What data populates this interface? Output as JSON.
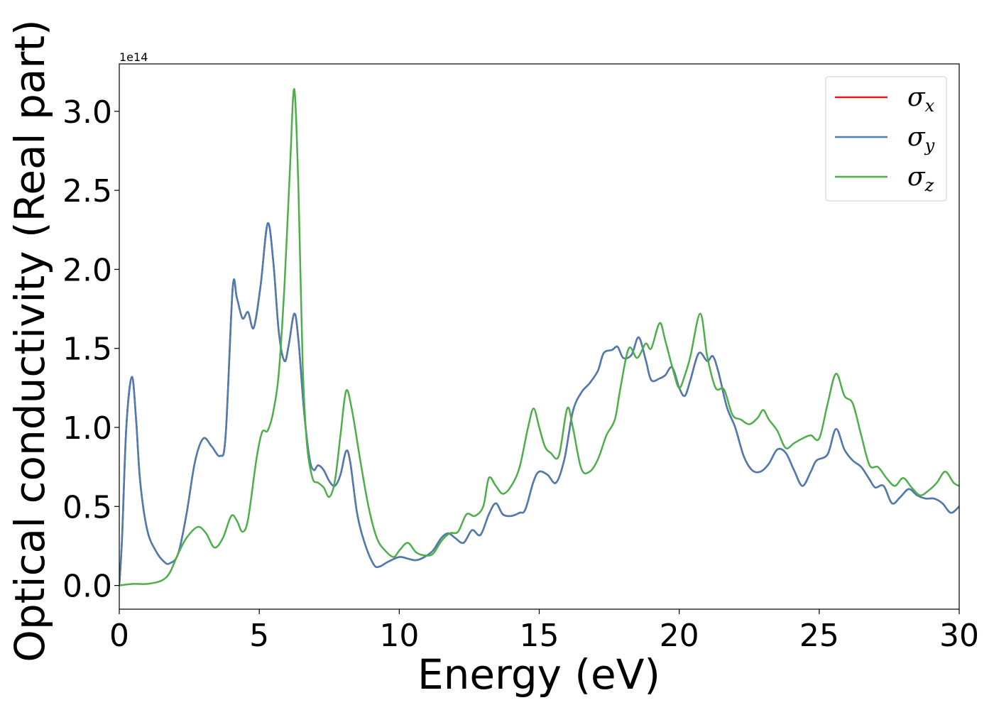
{
  "chart_data": {
    "type": "line",
    "xlabel": "Energy (eV)",
    "ylabel": "Optical conductivity (Real part)",
    "y_offset_label": "1e14",
    "xlim": [
      0,
      30
    ],
    "ylim": [
      -0.15,
      3.3
    ],
    "xticks": [
      0,
      5,
      10,
      15,
      20,
      25,
      30
    ],
    "xtick_labels": [
      "0",
      "5",
      "10",
      "15",
      "20",
      "25",
      "30"
    ],
    "yticks": [
      0.0,
      0.5,
      1.0,
      1.5,
      2.0,
      2.5,
      3.0
    ],
    "ytick_labels": [
      "0.0",
      "0.5",
      "1.0",
      "1.5",
      "2.0",
      "2.5",
      "3.0"
    ],
    "grid": false,
    "legend_position": "top-right",
    "series": [
      {
        "name": "σx",
        "symbol": "σ",
        "subscript": "x",
        "color": "#e41a1c",
        "x": [
          0,
          0.1,
          0.25,
          0.45,
          0.6,
          0.75,
          1.0,
          1.3,
          1.6,
          1.8,
          2.1,
          2.4,
          2.7,
          3.0,
          3.3,
          3.6,
          3.8,
          4.05,
          4.2,
          4.4,
          4.6,
          4.8,
          5.05,
          5.3,
          5.5,
          5.7,
          5.9,
          6.05,
          6.25,
          6.4,
          6.6,
          6.8,
          6.95,
          7.1,
          7.3,
          7.5,
          7.7,
          7.9,
          8.1,
          8.25,
          8.5,
          8.8,
          9.1,
          9.3,
          9.6,
          10.0,
          10.3,
          10.6,
          10.9,
          11.2,
          11.5,
          11.75,
          12.0,
          12.3,
          12.6,
          12.9,
          13.2,
          13.45,
          13.7,
          14.0,
          14.3,
          14.5,
          14.8,
          15.0,
          15.3,
          15.6,
          15.9,
          16.2,
          16.5,
          16.8,
          17.1,
          17.3,
          17.6,
          17.8,
          18.0,
          18.3,
          18.55,
          18.8,
          19.0,
          19.3,
          19.5,
          19.75,
          20.0,
          20.2,
          20.4,
          20.7,
          21.0,
          21.2,
          21.4,
          21.7,
          22.0,
          22.3,
          22.6,
          22.9,
          23.2,
          23.5,
          23.8,
          24.1,
          24.4,
          24.7,
          24.9,
          25.3,
          25.6,
          25.9,
          26.2,
          26.5,
          26.8,
          27.0,
          27.3,
          27.6,
          27.9,
          28.2,
          28.5,
          28.8,
          29.1,
          29.4,
          29.7,
          30.0
        ],
        "y": [
          0.0,
          0.3,
          1.0,
          1.32,
          1.05,
          0.65,
          0.35,
          0.22,
          0.15,
          0.14,
          0.2,
          0.45,
          0.78,
          0.93,
          0.88,
          0.82,
          0.95,
          1.88,
          1.82,
          1.69,
          1.73,
          1.63,
          1.9,
          2.29,
          2.05,
          1.6,
          1.42,
          1.52,
          1.72,
          1.55,
          1.1,
          0.8,
          0.73,
          0.76,
          0.73,
          0.66,
          0.63,
          0.7,
          0.85,
          0.78,
          0.45,
          0.25,
          0.13,
          0.12,
          0.15,
          0.18,
          0.17,
          0.16,
          0.18,
          0.22,
          0.3,
          0.33,
          0.3,
          0.27,
          0.35,
          0.32,
          0.45,
          0.52,
          0.45,
          0.44,
          0.46,
          0.48,
          0.66,
          0.72,
          0.7,
          0.65,
          0.8,
          1.1,
          1.22,
          1.28,
          1.36,
          1.47,
          1.49,
          1.51,
          1.44,
          1.46,
          1.57,
          1.43,
          1.3,
          1.31,
          1.33,
          1.38,
          1.25,
          1.2,
          1.3,
          1.47,
          1.42,
          1.45,
          1.35,
          1.13,
          1.0,
          0.82,
          0.73,
          0.72,
          0.77,
          0.86,
          0.84,
          0.73,
          0.63,
          0.72,
          0.79,
          0.83,
          0.99,
          0.86,
          0.79,
          0.75,
          0.67,
          0.62,
          0.63,
          0.52,
          0.56,
          0.61,
          0.57,
          0.55,
          0.55,
          0.52,
          0.46,
          0.5
        ]
      },
      {
        "name": "σy",
        "symbol": "σ",
        "subscript": "y",
        "color": "#4a7db3",
        "x": [
          0,
          0.1,
          0.25,
          0.45,
          0.6,
          0.75,
          1.0,
          1.3,
          1.6,
          1.8,
          2.1,
          2.4,
          2.7,
          3.0,
          3.3,
          3.6,
          3.8,
          4.05,
          4.2,
          4.4,
          4.6,
          4.8,
          5.05,
          5.3,
          5.5,
          5.7,
          5.9,
          6.05,
          6.25,
          6.4,
          6.6,
          6.8,
          6.95,
          7.1,
          7.3,
          7.5,
          7.7,
          7.9,
          8.1,
          8.25,
          8.5,
          8.8,
          9.1,
          9.3,
          9.6,
          10.0,
          10.3,
          10.6,
          10.9,
          11.2,
          11.5,
          11.75,
          12.0,
          12.3,
          12.6,
          12.9,
          13.2,
          13.45,
          13.7,
          14.0,
          14.3,
          14.5,
          14.8,
          15.0,
          15.3,
          15.6,
          15.9,
          16.2,
          16.5,
          16.8,
          17.1,
          17.3,
          17.6,
          17.8,
          18.0,
          18.3,
          18.55,
          18.8,
          19.0,
          19.3,
          19.5,
          19.75,
          20.0,
          20.2,
          20.4,
          20.7,
          21.0,
          21.2,
          21.4,
          21.7,
          22.0,
          22.3,
          22.6,
          22.9,
          23.2,
          23.5,
          23.8,
          24.1,
          24.4,
          24.7,
          24.9,
          25.3,
          25.6,
          25.9,
          26.2,
          26.5,
          26.8,
          27.0,
          27.3,
          27.6,
          27.9,
          28.2,
          28.5,
          28.8,
          29.1,
          29.4,
          29.7,
          30.0
        ],
        "y": [
          0.0,
          0.3,
          1.0,
          1.32,
          1.05,
          0.65,
          0.35,
          0.22,
          0.15,
          0.14,
          0.2,
          0.45,
          0.78,
          0.93,
          0.88,
          0.82,
          0.95,
          1.88,
          1.82,
          1.69,
          1.73,
          1.63,
          1.9,
          2.29,
          2.05,
          1.6,
          1.42,
          1.52,
          1.72,
          1.55,
          1.1,
          0.8,
          0.73,
          0.76,
          0.73,
          0.66,
          0.63,
          0.7,
          0.85,
          0.78,
          0.45,
          0.25,
          0.13,
          0.12,
          0.15,
          0.18,
          0.17,
          0.16,
          0.18,
          0.22,
          0.3,
          0.33,
          0.3,
          0.27,
          0.35,
          0.32,
          0.45,
          0.52,
          0.45,
          0.44,
          0.46,
          0.48,
          0.66,
          0.72,
          0.7,
          0.65,
          0.8,
          1.1,
          1.22,
          1.28,
          1.36,
          1.47,
          1.49,
          1.51,
          1.44,
          1.46,
          1.57,
          1.43,
          1.3,
          1.31,
          1.33,
          1.38,
          1.25,
          1.2,
          1.3,
          1.47,
          1.42,
          1.45,
          1.35,
          1.13,
          1.0,
          0.82,
          0.73,
          0.72,
          0.77,
          0.86,
          0.84,
          0.73,
          0.63,
          0.72,
          0.79,
          0.83,
          0.99,
          0.86,
          0.79,
          0.75,
          0.67,
          0.62,
          0.63,
          0.52,
          0.56,
          0.61,
          0.57,
          0.55,
          0.55,
          0.52,
          0.46,
          0.5
        ]
      },
      {
        "name": "σz",
        "symbol": "σ",
        "subscript": "z",
        "color": "#4daf4a",
        "x": [
          0,
          0.5,
          1.0,
          1.5,
          1.8,
          2.1,
          2.4,
          2.8,
          3.1,
          3.4,
          3.7,
          4.0,
          4.2,
          4.4,
          4.6,
          4.9,
          5.1,
          5.3,
          5.5,
          5.7,
          5.9,
          6.1,
          6.25,
          6.4,
          6.55,
          6.7,
          6.9,
          7.1,
          7.3,
          7.5,
          7.7,
          7.9,
          8.1,
          8.3,
          8.6,
          8.9,
          9.2,
          9.5,
          9.8,
          10.0,
          10.3,
          10.6,
          10.9,
          11.2,
          11.5,
          11.8,
          12.1,
          12.4,
          12.7,
          13.0,
          13.2,
          13.45,
          13.7,
          14.0,
          14.3,
          14.6,
          14.8,
          15.0,
          15.2,
          15.4,
          15.7,
          16.0,
          16.2,
          16.5,
          16.8,
          17.1,
          17.4,
          17.7,
          17.9,
          18.2,
          18.5,
          18.8,
          19.0,
          19.3,
          19.5,
          19.8,
          20.0,
          20.2,
          20.4,
          20.75,
          21.0,
          21.3,
          21.6,
          21.9,
          22.2,
          22.5,
          22.8,
          23.0,
          23.2,
          23.5,
          23.8,
          24.1,
          24.4,
          24.7,
          25.0,
          25.3,
          25.6,
          25.9,
          26.2,
          26.5,
          26.8,
          27.1,
          27.4,
          27.7,
          28.0,
          28.3,
          28.6,
          28.9,
          29.2,
          29.5,
          29.8,
          30.0
        ],
        "y": [
          0.0,
          0.01,
          0.01,
          0.03,
          0.08,
          0.2,
          0.3,
          0.37,
          0.33,
          0.24,
          0.3,
          0.44,
          0.41,
          0.34,
          0.42,
          0.8,
          0.97,
          0.98,
          1.1,
          1.35,
          1.9,
          2.65,
          3.14,
          2.5,
          1.4,
          0.9,
          0.68,
          0.65,
          0.62,
          0.56,
          0.66,
          0.95,
          1.23,
          1.12,
          0.8,
          0.5,
          0.3,
          0.22,
          0.18,
          0.22,
          0.27,
          0.21,
          0.19,
          0.2,
          0.28,
          0.33,
          0.34,
          0.45,
          0.44,
          0.5,
          0.68,
          0.63,
          0.58,
          0.63,
          0.75,
          1.0,
          1.12,
          1.0,
          0.88,
          0.84,
          0.82,
          1.12,
          1.0,
          0.74,
          0.72,
          0.8,
          0.95,
          1.05,
          1.25,
          1.5,
          1.44,
          1.53,
          1.5,
          1.66,
          1.55,
          1.35,
          1.25,
          1.33,
          1.45,
          1.72,
          1.45,
          1.25,
          1.24,
          1.08,
          1.05,
          1.02,
          1.06,
          1.11,
          1.05,
          0.98,
          0.87,
          0.9,
          0.93,
          0.95,
          0.93,
          1.15,
          1.34,
          1.2,
          1.15,
          0.95,
          0.76,
          0.75,
          0.68,
          0.63,
          0.68,
          0.62,
          0.57,
          0.6,
          0.65,
          0.72,
          0.65,
          0.63
        ]
      }
    ]
  }
}
